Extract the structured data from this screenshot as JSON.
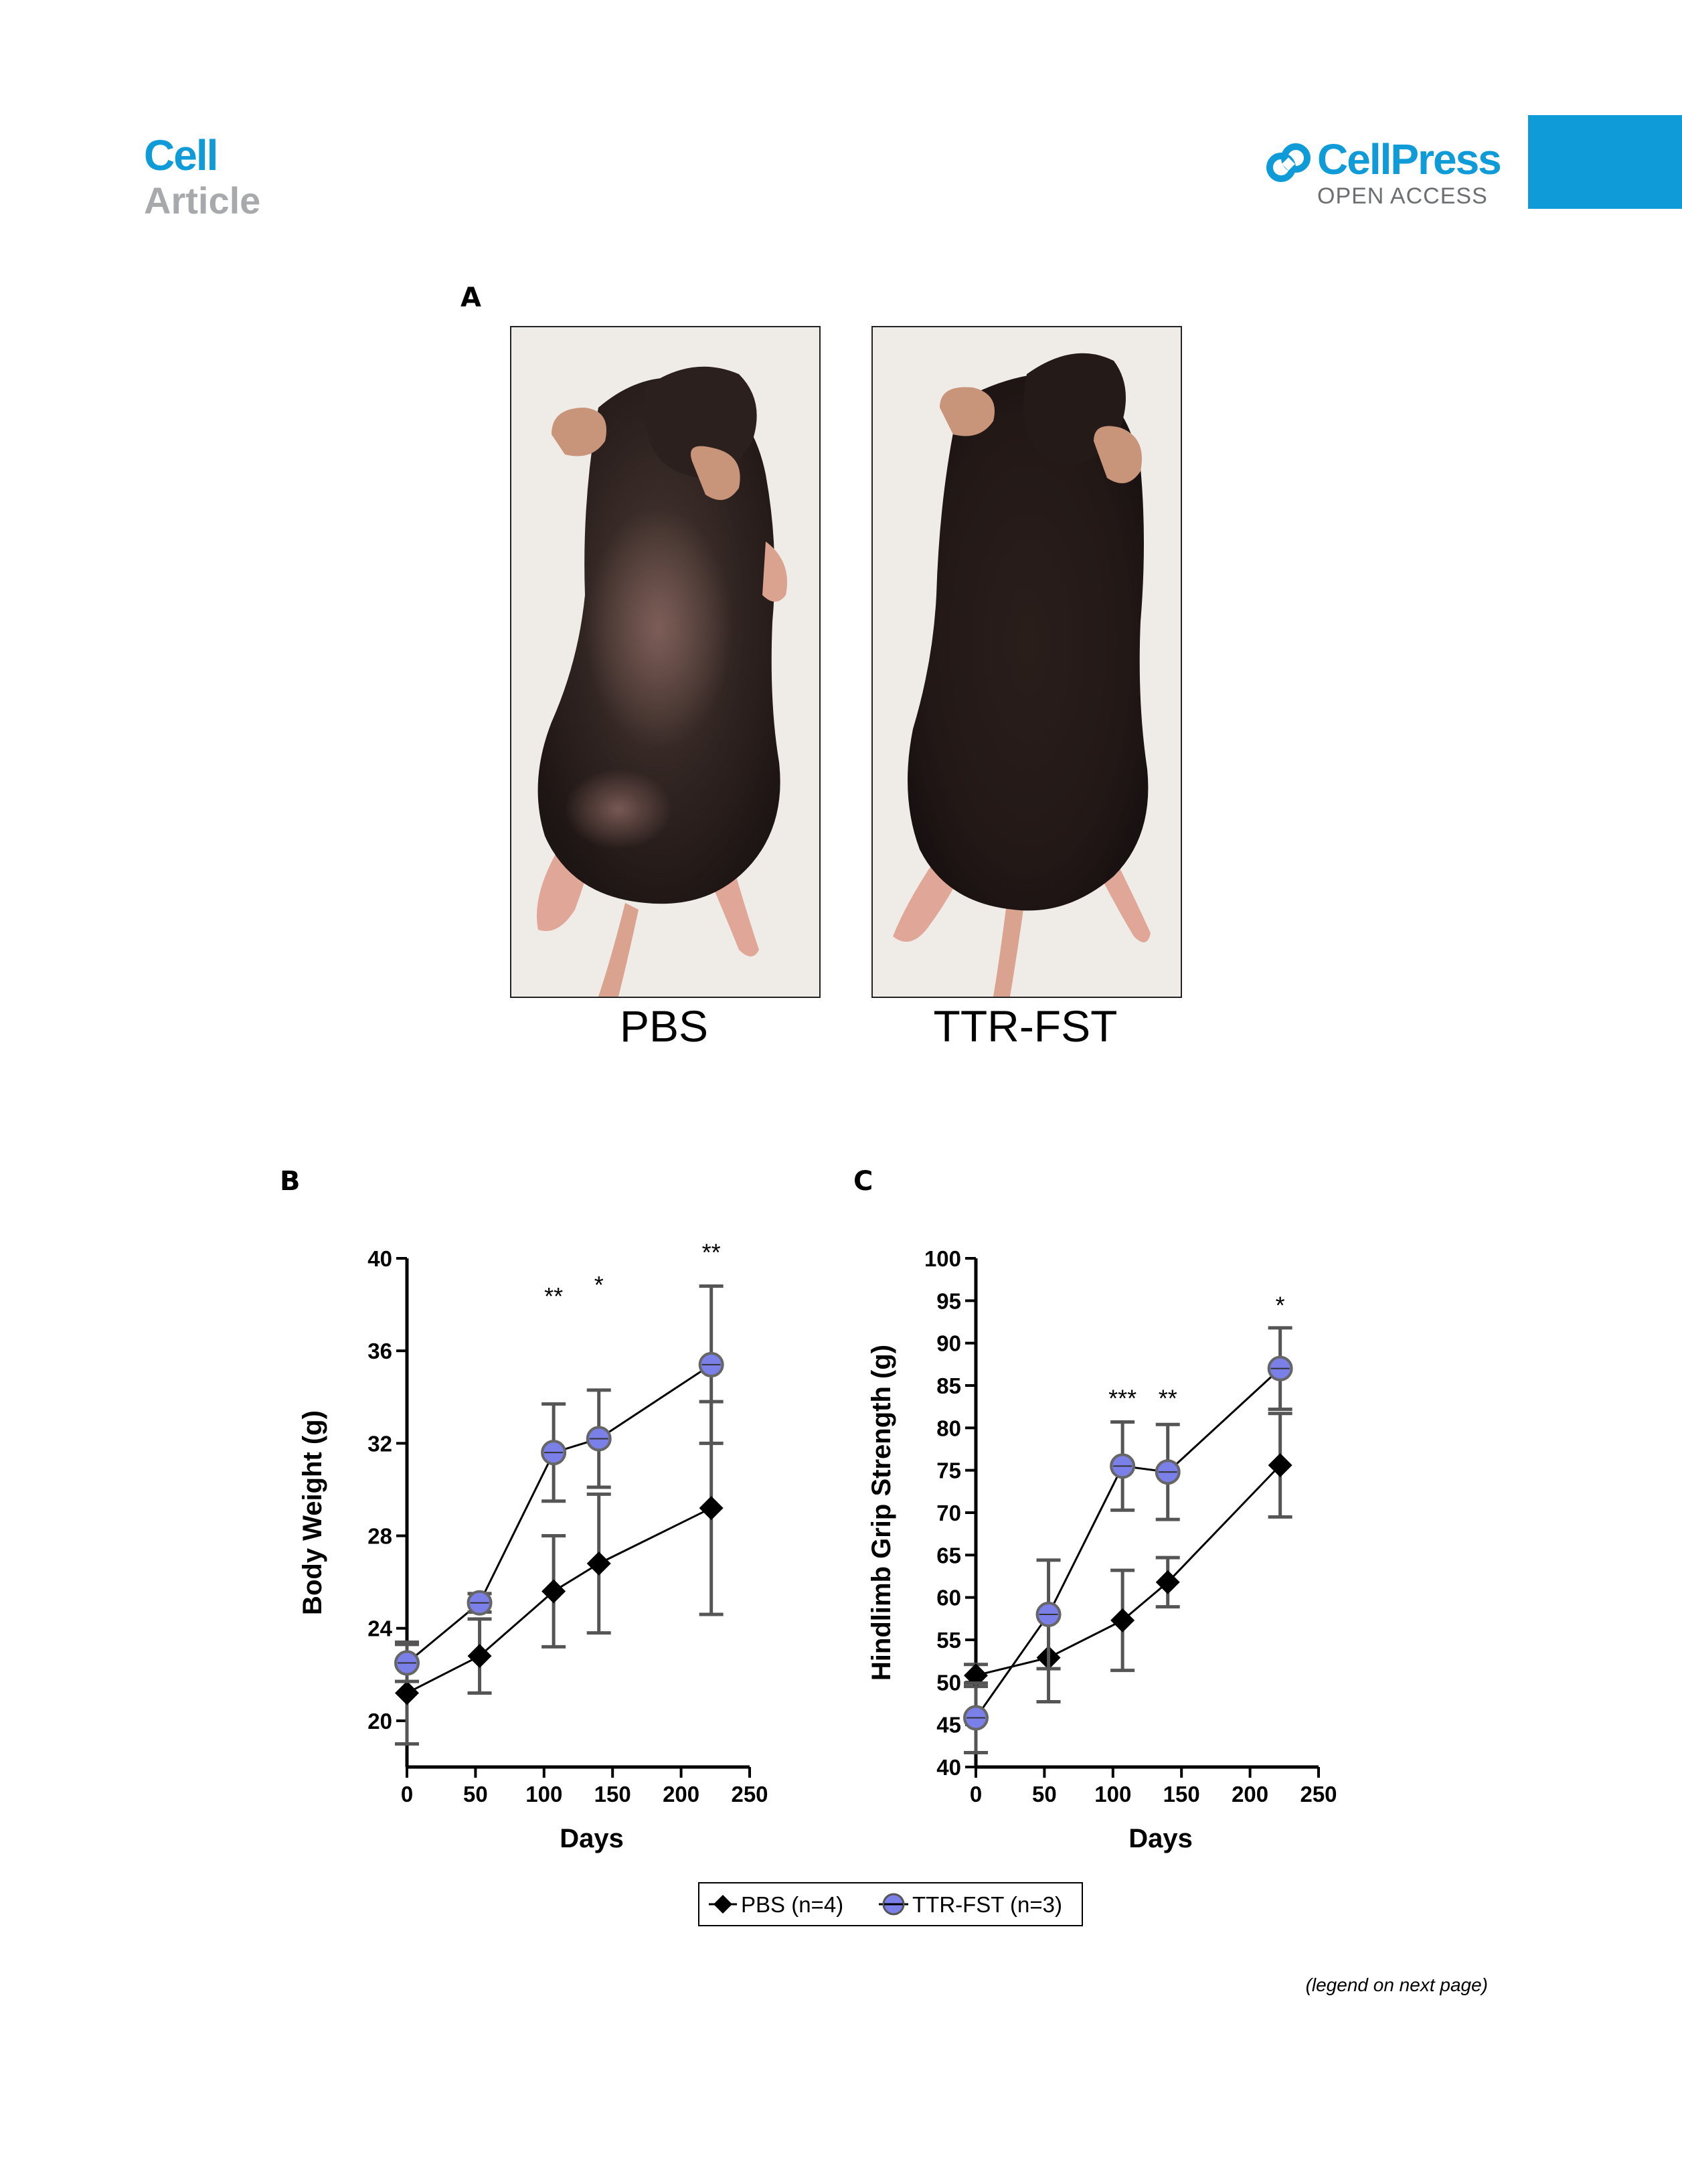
{
  "header": {
    "journal": "Cell",
    "article_type": "Article",
    "publisher": "CellPress",
    "access": "OPEN ACCESS",
    "accent_color": "#0e9bd8"
  },
  "figure": {
    "panel_a": {
      "letter": "A",
      "photos": [
        {
          "label": "PBS",
          "subject": "mouse-photo-pbs"
        },
        {
          "label": "TTR-FST",
          "subject": "mouse-photo-ttr-fst"
        }
      ]
    },
    "panel_b": {
      "letter": "B"
    },
    "panel_c": {
      "letter": "C"
    },
    "legend": {
      "items": [
        {
          "label": "PBS (n=4)",
          "marker": "diamond",
          "color": "#000000"
        },
        {
          "label": "TTR-FST (n=3)",
          "marker": "circle",
          "color": "#7b7fe8"
        }
      ]
    },
    "footer_note": "(legend on next page)"
  },
  "chart_data": [
    {
      "type": "line",
      "panel": "B",
      "xlabel": "Days",
      "ylabel": "Body Weight (g)",
      "xlim": [
        0,
        250
      ],
      "ylim": [
        18,
        40
      ],
      "xticks": [
        0,
        50,
        100,
        150,
        200,
        250
      ],
      "yticks": [
        20,
        24,
        28,
        32,
        36,
        40
      ],
      "series": [
        {
          "name": "PBS (n=4)",
          "marker": "diamond",
          "color": "#000000",
          "x": [
            0,
            53,
            107,
            140,
            222
          ],
          "y": [
            21.2,
            22.8,
            25.6,
            26.8,
            29.2
          ],
          "err": [
            2.2,
            1.6,
            2.4,
            3.0,
            4.6
          ]
        },
        {
          "name": "TTR-FST (n=3)",
          "marker": "circle",
          "color": "#7b7fe8",
          "x": [
            0,
            53,
            107,
            140,
            222
          ],
          "y": [
            22.5,
            25.1,
            31.6,
            32.2,
            35.4
          ],
          "err": [
            0.8,
            0.4,
            2.1,
            2.1,
            3.4
          ]
        }
      ],
      "annotations": [
        {
          "x": 107,
          "y": 38.0,
          "text": "**"
        },
        {
          "x": 140,
          "y": 38.5,
          "text": "*"
        },
        {
          "x": 222,
          "y": 39.9,
          "text": "**"
        }
      ],
      "grid": false
    },
    {
      "type": "line",
      "panel": "C",
      "xlabel": "Days",
      "ylabel": "Hindlimb Grip Strength (g)",
      "xlim": [
        0,
        250
      ],
      "ylim": [
        40,
        100
      ],
      "xticks": [
        0,
        50,
        100,
        150,
        200,
        250
      ],
      "yticks": [
        40,
        45,
        50,
        55,
        60,
        65,
        70,
        75,
        80,
        85,
        90,
        95,
        100
      ],
      "series": [
        {
          "name": "PBS (n=4)",
          "marker": "diamond",
          "color": "#000000",
          "x": [
            0,
            53,
            107,
            140,
            222
          ],
          "y": [
            50.8,
            52.9,
            57.3,
            61.8,
            75.6
          ],
          "err": [
            1.3,
            5.2,
            5.9,
            2.9,
            6.1
          ]
        },
        {
          "name": "TTR-FST (n=3)",
          "marker": "circle",
          "color": "#7b7fe8",
          "x": [
            0,
            53,
            107,
            140,
            222
          ],
          "y": [
            45.8,
            58.0,
            75.5,
            74.8,
            87.0
          ],
          "err": [
            4.1,
            6.4,
            5.2,
            5.6,
            4.8
          ]
        }
      ],
      "annotations": [
        {
          "x": 107,
          "y": 82.5,
          "text": "***"
        },
        {
          "x": 140,
          "y": 82.5,
          "text": "**"
        },
        {
          "x": 222,
          "y": 93.5,
          "text": "*"
        }
      ],
      "grid": false
    }
  ]
}
